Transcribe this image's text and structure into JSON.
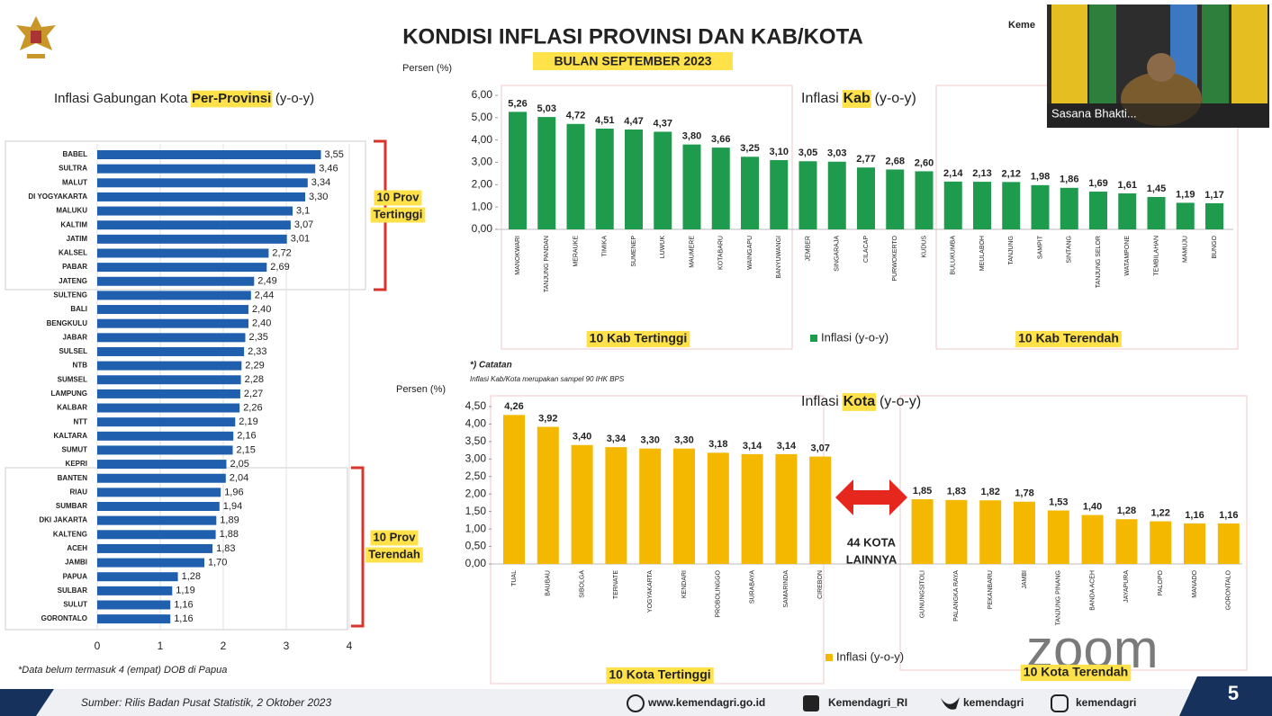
{
  "slide": {
    "title": "KONDISI INFLASI PROVINSI DAN KAB/KOTA",
    "subtitle": "BULAN SEPTEMBER 2023",
    "source": "Sumber: Rilis Badan Pusat Statistik, 2 Oktober 2023",
    "website": "www.kemendagri.go.id",
    "facebook": "Kemendagri_RI",
    "twitter": "kemendagri",
    "instagram": "kemendagri",
    "page": "5",
    "catatan_heading": "*) Catatan",
    "catatan_text": "Inflasi Kab/Kota merupakan sampel 90 IHK BPS",
    "video_name": "Sasana Bhakti...",
    "video_org": "Keme",
    "watermark": "zoom"
  },
  "chart_data": [
    {
      "type": "hbar",
      "title": [
        "Inflasi Gabungan Kota",
        "Per-Provinsi",
        "(y-o-y)"
      ],
      "categories": [
        "BABEL",
        "SULTRA",
        "MALUT",
        "DI YOGYAKARTA",
        "MALUKU",
        "KALTIM",
        "JATIM",
        "KALSEL",
        "PABAR",
        "JATENG",
        "SULTENG",
        "BALI",
        "BENGKULU",
        "JABAR",
        "SULSEL",
        "NTB",
        "SUMSEL",
        "LAMPUNG",
        "KALBAR",
        "NTT",
        "KALTARA",
        "SUMUT",
        "KEPRI",
        "BANTEN",
        "RIAU",
        "SUMBAR",
        "DKI JAKARTA",
        "KALTENG",
        "ACEH",
        "JAMBI",
        "PAPUA",
        "SULBAR",
        "SULUT",
        "GORONTALO"
      ],
      "values": [
        3.55,
        3.46,
        3.34,
        3.3,
        3.1,
        3.07,
        3.01,
        2.72,
        2.69,
        2.49,
        2.44,
        2.4,
        2.4,
        2.35,
        2.33,
        2.29,
        2.28,
        2.27,
        2.26,
        2.19,
        2.16,
        2.15,
        2.05,
        2.04,
        1.96,
        1.94,
        1.89,
        1.88,
        1.83,
        1.7,
        1.28,
        1.19,
        1.16,
        1.16
      ],
      "value_labels": [
        "3,55",
        "3,46",
        "3,34",
        "3,30",
        "3,1",
        "3,07",
        "3,01",
        "2,72",
        "2,69",
        "2,49",
        "2,44",
        "2,40",
        "2,40",
        "2,35",
        "2,33",
        "2,29",
        "2,28",
        "2,27",
        "2,26",
        "2,19",
        "2,16",
        "2,15",
        "2,05",
        "2,04",
        "1,96",
        "1,94",
        "1,89",
        "1,88",
        "1,83",
        "1,70",
        "1,28",
        "1,19",
        "1,16",
        "1,16"
      ],
      "color": "#1f5fae",
      "xlim": [
        0,
        4
      ],
      "xticks": [
        0,
        1,
        2,
        3,
        4
      ],
      "grid": true,
      "annotations": [
        [
          "10 Prov",
          "Tertinggi"
        ],
        [
          "10 Prov",
          "Terendah"
        ]
      ],
      "note": "*Data belum termasuk 4 (empat) DOB di Papua"
    },
    {
      "type": "bar",
      "title": [
        "Inflasi",
        "Kab",
        "(y-o-y)"
      ],
      "y_label": "Persen (%)",
      "categories": [
        "MANOKWARI",
        "TANJUNG PANDAN",
        "MERAUKE",
        "TIMIKA",
        "SUMENEP",
        "LUWUK",
        "MAUMERE",
        "KOTABARU",
        "WAINGAPU",
        "BANYUWANGI",
        "JEMBER",
        "SINGARAJA",
        "CILACAP",
        "PURWOKERTO",
        "KUDUS",
        "BULUKUMBA",
        "MEULABOH",
        "TANJUNG",
        "SAMPIT",
        "SINTANG",
        "TANJUNG SELOR",
        "WATAMPONE",
        "TEMBILAHAN",
        "MAMUJU",
        "BUNGO"
      ],
      "series": [
        {
          "name": "Inflasi (y-o-y)",
          "color": "#1e9b4c",
          "values": [
            5.26,
            5.03,
            4.72,
            4.51,
            4.47,
            4.37,
            3.8,
            3.66,
            3.25,
            3.1,
            3.05,
            3.03,
            2.77,
            2.68,
            2.6,
            2.14,
            2.13,
            2.12,
            1.98,
            1.86,
            1.69,
            1.61,
            1.45,
            1.19,
            1.17
          ],
          "value_labels": [
            "5,26",
            "5,03",
            "4,72",
            "4,51",
            "4,47",
            "4,37",
            "3,80",
            "3,66",
            "3,25",
            "3,10",
            "3,05",
            "3,03",
            "2,77",
            "2,68",
            "2,60",
            "2,14",
            "2,13",
            "2,12",
            "1,98",
            "1,86",
            "1,69",
            "1,61",
            "1,45",
            "1,19",
            "1,17"
          ]
        }
      ],
      "ylim": [
        0,
        6
      ],
      "yticks": [
        {
          "value": 0,
          "label": "0,00"
        },
        {
          "value": 1,
          "label": "1,00"
        },
        {
          "value": 2,
          "label": "2,00"
        },
        {
          "value": 3,
          "label": "3,00"
        },
        {
          "value": 4,
          "label": "4,00"
        },
        {
          "value": 5,
          "label": "5,00"
        },
        {
          "value": 6,
          "label": "6,00"
        }
      ],
      "annotations": [
        "10 Kab Tertinggi",
        "10 Kab Terendah"
      ]
    },
    {
      "type": "bar",
      "title": [
        "Inflasi",
        "Kota",
        "(y-o-y)"
      ],
      "y_label": "Persen (%)",
      "categories": [
        "TUAL",
        "BAUBAU",
        "SIBOLGA",
        "TERNATE",
        "YOGYAKARTA",
        "KENDARI",
        "PROBOLINGGO",
        "SURABAYA",
        "SAMARINDA",
        "CIREBON",
        "GUNUNGSITOLI",
        "PALANGKA RAYA",
        "PEKANBARU",
        "JAMBI",
        "TANJUNG PINANG",
        "BANDA ACEH",
        "JAYAPURA",
        "PALOPO",
        "MANADO",
        "GORONTALO"
      ],
      "series": [
        {
          "name": "Inflasi (y-o-y)",
          "color": "#f5b800",
          "values": [
            4.26,
            3.92,
            3.4,
            3.34,
            3.3,
            3.3,
            3.18,
            3.14,
            3.14,
            3.07,
            1.85,
            1.83,
            1.82,
            1.78,
            1.53,
            1.4,
            1.28,
            1.22,
            1.16,
            1.16
          ],
          "value_labels": [
            "4,26",
            "3,92",
            "3,40",
            "3,34",
            "3,30",
            "3,30",
            "3,18",
            "3,14",
            "3,14",
            "3,07",
            "1,85",
            "1,83",
            "1,82",
            "1,78",
            "1,53",
            "1,40",
            "1,28",
            "1,22",
            "1,16",
            "1,16"
          ]
        }
      ],
      "ylim": [
        0,
        4.5
      ],
      "yticks": [
        {
          "value": 0,
          "label": "0,00"
        },
        {
          "value": 0.5,
          "label": "0,50"
        },
        {
          "value": 1,
          "label": "1,00"
        },
        {
          "value": 1.5,
          "label": "1,50"
        },
        {
          "value": 2,
          "label": "2,00"
        },
        {
          "value": 2.5,
          "label": "2,50"
        },
        {
          "value": 3,
          "label": "3,00"
        },
        {
          "value": 3.5,
          "label": "3,50"
        },
        {
          "value": 4,
          "label": "4,00"
        },
        {
          "value": 4.5,
          "label": "4,50"
        }
      ],
      "annotations": [
        "10 Kota Tertinggi",
        "10 Kota Terendah"
      ],
      "gap_label": [
        "44 KOTA",
        "LAINNYA"
      ]
    }
  ]
}
